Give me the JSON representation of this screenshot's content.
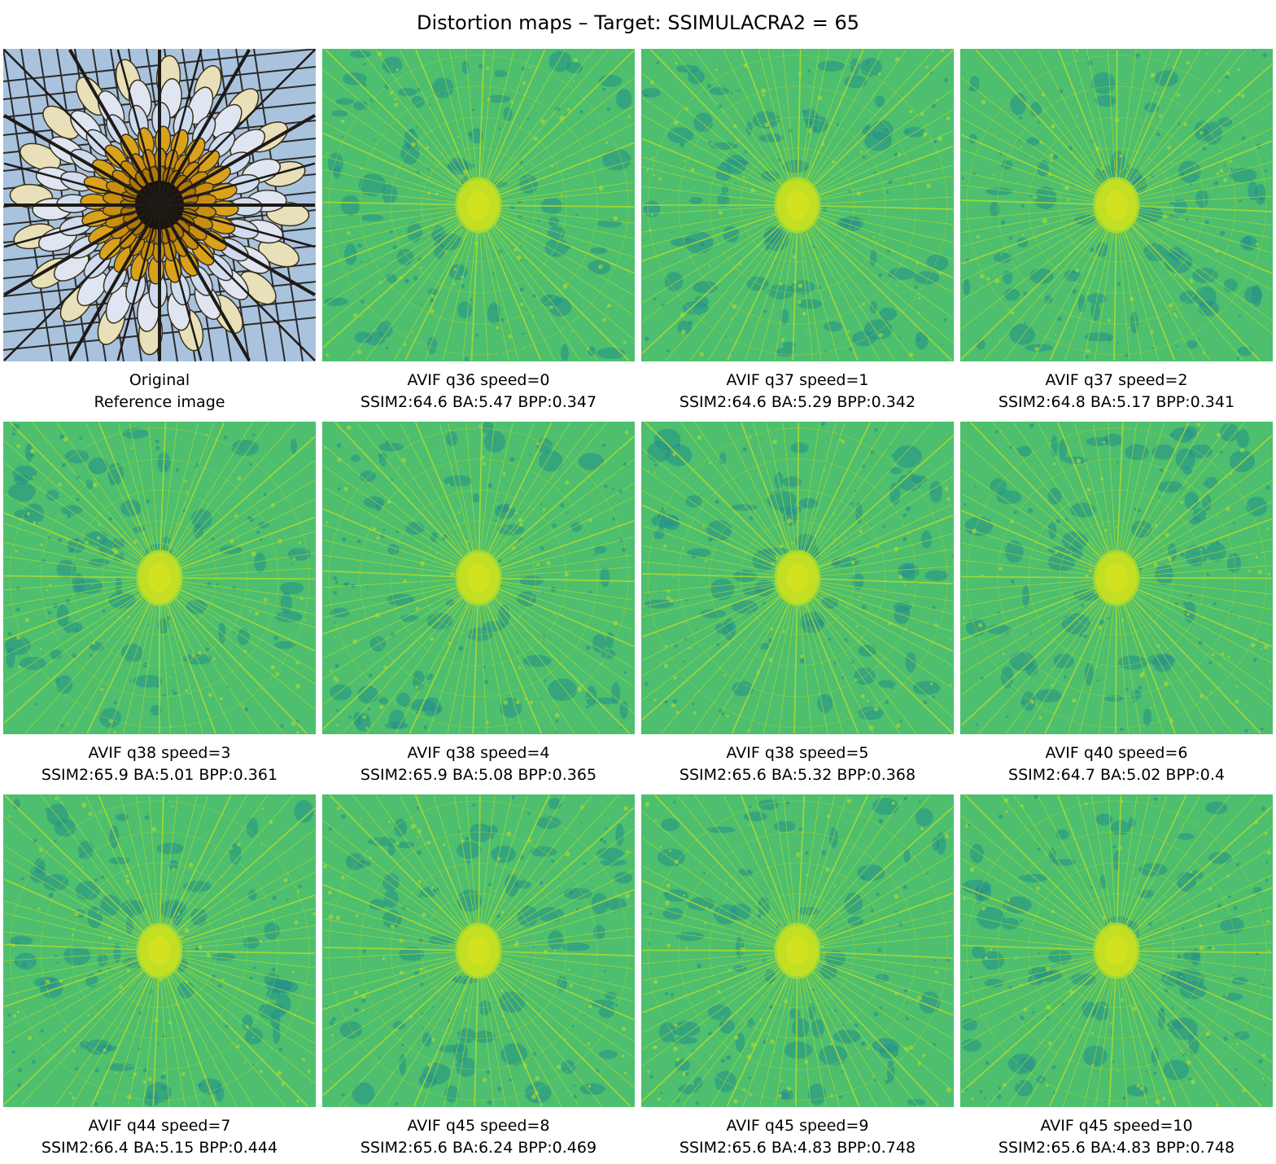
{
  "figure": {
    "title": "Distortion maps – Target: SSIMULACRA2 = 65",
    "colormap": "viridis",
    "colors": {
      "base": "#4dbf6e",
      "high": "#b8de29",
      "low": "#23908c",
      "center": "#c2df23"
    }
  },
  "panels": [
    {
      "kind": "original",
      "line1": "Original",
      "line2": "Reference image"
    },
    {
      "kind": "map",
      "line1": "AVIF q36 speed=0",
      "line2": "SSIM2:64.6 BA:5.47 BPP:0.347"
    },
    {
      "kind": "map",
      "line1": "AVIF q37 speed=1",
      "line2": "SSIM2:64.6 BA:5.29 BPP:0.342"
    },
    {
      "kind": "map",
      "line1": "AVIF q37 speed=2",
      "line2": "SSIM2:64.8 BA:5.17 BPP:0.341"
    },
    {
      "kind": "map",
      "line1": "AVIF q38 speed=3",
      "line2": "SSIM2:65.9 BA:5.01 BPP:0.361"
    },
    {
      "kind": "map",
      "line1": "AVIF q38 speed=4",
      "line2": "SSIM2:65.9 BA:5.08 BPP:0.365"
    },
    {
      "kind": "map",
      "line1": "AVIF q38 speed=5",
      "line2": "SSIM2:65.6 BA:5.32 BPP:0.368"
    },
    {
      "kind": "map",
      "line1": "AVIF q40 speed=6",
      "line2": "SSIM2:64.7 BA:5.02 BPP:0.4"
    },
    {
      "kind": "map",
      "line1": "AVIF q44 speed=7",
      "line2": "SSIM2:66.4 BA:5.15 BPP:0.444"
    },
    {
      "kind": "map",
      "line1": "AVIF q45 speed=8",
      "line2": "SSIM2:65.6 BA:6.24 BPP:0.469"
    },
    {
      "kind": "map",
      "line1": "AVIF q45 speed=9",
      "line2": "SSIM2:65.6 BA:4.83 BPP:0.748"
    },
    {
      "kind": "map",
      "line1": "AVIF q45 speed=10",
      "line2": "SSIM2:65.6 BA:4.83 BPP:0.748"
    }
  ]
}
